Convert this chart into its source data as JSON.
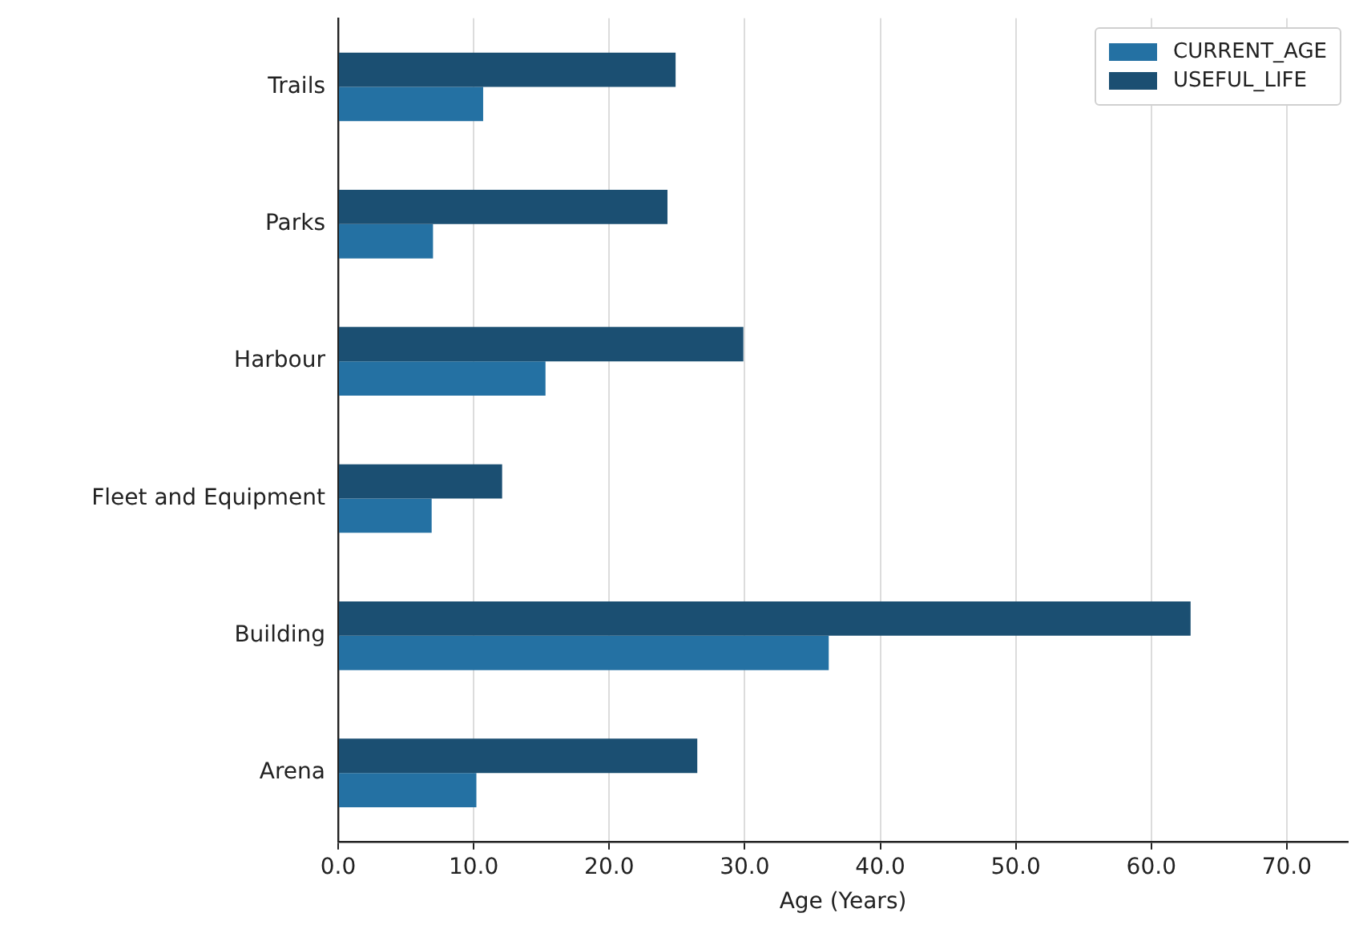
{
  "chart_data": {
    "type": "bar",
    "orientation": "horizontal",
    "xlabel": "Age (Years)",
    "categories": [
      "Trails",
      "Parks",
      "Harbour",
      "Fleet and Equipment",
      "Building",
      "Arena"
    ],
    "series": [
      {
        "name": "CURRENT_AGE",
        "color": "#2471a3",
        "values": [
          10.7,
          7.0,
          15.3,
          6.9,
          36.2,
          10.2
        ]
      },
      {
        "name": "USEFUL_LIFE",
        "color": "#1b4f72",
        "values": [
          24.9,
          24.3,
          29.9,
          12.1,
          62.9,
          26.5
        ]
      }
    ],
    "xlim": [
      0,
      74.5
    ],
    "xticks": [
      {
        "value": 0,
        "label": "0.0"
      },
      {
        "value": 10,
        "label": "10.0"
      },
      {
        "value": 20,
        "label": "20.0"
      },
      {
        "value": 30,
        "label": "30.0"
      },
      {
        "value": 40,
        "label": "40.0"
      },
      {
        "value": 50,
        "label": "50.0"
      },
      {
        "value": 60,
        "label": "60.0"
      },
      {
        "value": 70,
        "label": "70.0"
      }
    ],
    "grid": "x",
    "legend": "top right"
  }
}
